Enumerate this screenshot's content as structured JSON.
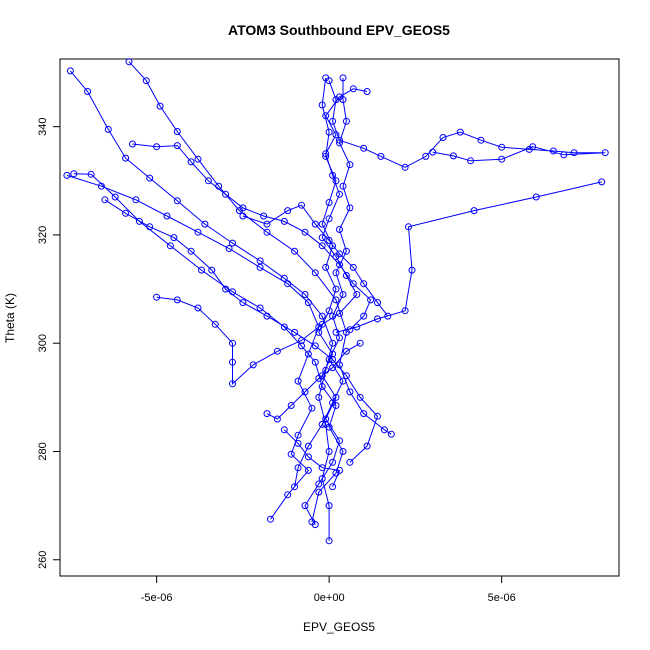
{
  "colors": {
    "series": "#0000ff",
    "axis": "#000000",
    "background": "#ffffff"
  },
  "chart_data": {
    "type": "scatter",
    "title": "ATOM3 Southbound EPV_GEOS5",
    "xlabel": "EPV_GEOS5",
    "ylabel": "Theta (K)",
    "xlim": [
      -7.8e-06,
      8.4e-06
    ],
    "ylim": [
      257,
      352.5
    ],
    "xticks": [
      -5e-06,
      0,
      5e-06
    ],
    "xtick_labels": [
      "-5e-06",
      "0e+00",
      "5e-06"
    ],
    "yticks": [
      260,
      280,
      300,
      320,
      340
    ],
    "ytick_labels": [
      "260",
      "280",
      "300",
      "320",
      "340"
    ],
    "grid": false,
    "legend": "none",
    "marker": "open-circle",
    "connect_points": true,
    "series": [
      {
        "points": [
          [
            -7.5e-06,
            350.3
          ],
          [
            -7e-06,
            346.5
          ],
          [
            -6.4e-06,
            339.5
          ],
          [
            -5.9e-06,
            334.2
          ],
          [
            -5.2e-06,
            330.5
          ],
          [
            -4.4e-06,
            326.3
          ],
          [
            -3.6e-06,
            322.0
          ],
          [
            -2.8e-06,
            318.5
          ],
          [
            -2e-06,
            315.2
          ],
          [
            -1.3e-06,
            312.0
          ],
          [
            -7e-07,
            309.0
          ],
          [
            -2e-07,
            305.0
          ],
          [
            1e-07,
            300.0
          ],
          [
            -1e-07,
            295.0
          ],
          [
            -3e-07,
            290.0
          ],
          [
            -1e-07,
            285.0
          ],
          [
            0.0,
            280.0
          ],
          [
            -2e-07,
            275.0
          ],
          [
            0.0,
            270.0
          ],
          [
            0.0,
            263.5
          ]
        ]
      },
      {
        "points": [
          [
            -5.8e-06,
            352.0
          ],
          [
            -5.3e-06,
            348.5
          ],
          [
            -4.9e-06,
            343.8
          ],
          [
            -4.4e-06,
            339.1
          ],
          [
            -3.8e-06,
            334.0
          ],
          [
            -3.2e-06,
            329.0
          ],
          [
            -2.6e-06,
            324.5
          ],
          [
            -1.8e-06,
            320.5
          ],
          [
            -1e-06,
            317.0
          ],
          [
            -4e-07,
            313.0
          ],
          [
            2e-07,
            308.0
          ],
          [
            5e-07,
            302.0
          ],
          [
            3e-07,
            296.0
          ],
          [
            6e-07,
            291.0
          ],
          [
            1e-06,
            287.0
          ],
          [
            1.6e-06,
            284.0
          ],
          [
            1.8e-06,
            283.2
          ]
        ]
      },
      {
        "points": [
          [
            0.0,
            348.5
          ],
          [
            2e-07,
            345.0
          ],
          [
            1e-07,
            341.0
          ],
          [
            3e-07,
            337.5
          ],
          [
            1e-06,
            336.0
          ],
          [
            1.5e-06,
            334.5
          ],
          [
            2.2e-06,
            332.5
          ],
          [
            2.8e-06,
            334.5
          ],
          [
            3.3e-06,
            338.0
          ],
          [
            3.8e-06,
            339.0
          ],
          [
            4.4e-06,
            337.5
          ],
          [
            5e-06,
            336.2
          ],
          [
            5.8e-06,
            335.8
          ],
          [
            6.5e-06,
            335.5
          ],
          [
            7.1e-06,
            335.2
          ],
          [
            8e-06,
            335.2
          ],
          [
            6.8e-06,
            334.8
          ],
          [
            5.9e-06,
            336.3
          ],
          [
            5e-06,
            334.0
          ],
          [
            4.1e-06,
            333.7
          ],
          [
            3.6e-06,
            334.6
          ],
          [
            3e-06,
            335.3
          ]
        ]
      },
      {
        "points": [
          [
            7.9e-06,
            329.8
          ],
          [
            6e-06,
            327.0
          ],
          [
            4.2e-06,
            324.5
          ],
          [
            2.3e-06,
            321.5
          ],
          [
            2.4e-06,
            313.5
          ],
          [
            2.2e-06,
            306.0
          ],
          [
            1.4e-06,
            304.5
          ],
          [
            8e-07,
            303.0
          ],
          [
            2e-07,
            302.0
          ]
        ]
      },
      {
        "points": [
          [
            -7.6e-06,
            331.0
          ],
          [
            -6.6e-06,
            329.0
          ],
          [
            -5.6e-06,
            326.5
          ],
          [
            -4.7e-06,
            323.5
          ],
          [
            -3.8e-06,
            320.5
          ],
          [
            -2.9e-06,
            317.5
          ],
          [
            -2e-06,
            314.0
          ],
          [
            -1.2e-06,
            311.0
          ],
          [
            -6e-07,
            307.5
          ],
          [
            -3e-07,
            303.0
          ],
          [
            -6e-07,
            298.0
          ],
          [
            -9e-07,
            293.0
          ],
          [
            -5e-07,
            288.0
          ],
          [
            -9e-07,
            283.0
          ],
          [
            -1.1e-06,
            279.5
          ],
          [
            -6e-07,
            276.5
          ],
          [
            -1.2e-06,
            272.0
          ],
          [
            -1.7e-06,
            267.5
          ]
        ]
      },
      {
        "points": [
          [
            -7.4e-06,
            331.3
          ],
          [
            -6.9e-06,
            331.2
          ],
          [
            -6.2e-06,
            327.0
          ],
          [
            -5.5e-06,
            322.5
          ],
          [
            -4.6e-06,
            318.0
          ],
          [
            -3.7e-06,
            313.5
          ],
          [
            -2.8e-06,
            309.5
          ],
          [
            -2e-06,
            306.5
          ],
          [
            -1.3e-06,
            303.0
          ],
          [
            -8e-07,
            299.5
          ],
          [
            -4e-07,
            296.5
          ],
          [
            -2e-07,
            292.0
          ],
          [
            2e-07,
            288.5
          ],
          [
            0.0,
            284.5
          ],
          [
            4e-07,
            280.0
          ],
          [
            2e-07,
            276.0
          ],
          [
            -3e-07,
            272.5
          ],
          [
            -5e-07,
            267.0
          ]
        ]
      },
      {
        "points": [
          [
            -6.5e-06,
            326.5
          ],
          [
            -5.9e-06,
            324.0
          ],
          [
            -5.2e-06,
            321.5
          ],
          [
            -4.5e-06,
            319.5
          ],
          [
            -4e-06,
            317.0
          ],
          [
            -3.4e-06,
            313.5
          ],
          [
            -3e-06,
            310.0
          ],
          [
            -2.5e-06,
            307.5
          ],
          [
            -1.8e-06,
            305.0
          ],
          [
            -1e-06,
            302.0
          ],
          [
            -4e-07,
            299.5
          ],
          [
            1e-07,
            297.0
          ],
          [
            5e-07,
            294.0
          ],
          [
            9e-07,
            290.0
          ],
          [
            1.4e-06,
            286.5
          ],
          [
            1.1e-06,
            281.0
          ],
          [
            6e-07,
            278.0
          ]
        ]
      },
      {
        "points": [
          [
            -5e-06,
            308.5
          ],
          [
            -4.4e-06,
            308.0
          ],
          [
            -3.8e-06,
            306.5
          ],
          [
            -3.3e-06,
            303.5
          ],
          [
            -2.8e-06,
            300.0
          ],
          [
            -2.8e-06,
            296.5
          ],
          [
            -2.8e-06,
            292.5
          ],
          [
            -2.2e-06,
            296.0
          ],
          [
            -1.5e-06,
            298.5
          ],
          [
            -8e-07,
            300.5
          ],
          [
            -2e-07,
            303.5
          ],
          [
            3e-07,
            305.5
          ],
          [
            8e-07,
            309.0
          ],
          [
            5e-07,
            312.5
          ],
          [
            2e-07,
            316.0
          ],
          [
            -2e-07,
            319.5
          ],
          [
            0.0,
            323.0
          ],
          [
            3e-07,
            327.5
          ],
          [
            1e-07,
            331.0
          ],
          [
            -1e-07,
            335.0
          ],
          [
            2e-07,
            338.5
          ],
          [
            -1e-07,
            342.0
          ],
          [
            3e-07,
            345.5
          ],
          [
            7e-07,
            347.0
          ],
          [
            1.1e-06,
            346.5
          ]
        ]
      },
      {
        "points": [
          [
            -5.7e-06,
            336.8
          ],
          [
            -5e-06,
            336.3
          ],
          [
            -4.4e-06,
            336.5
          ],
          [
            -4e-06,
            333.5
          ],
          [
            -3.5e-06,
            330.0
          ],
          [
            -3e-06,
            327.5
          ],
          [
            -2.5e-06,
            325.0
          ],
          [
            -1.9e-06,
            323.5
          ],
          [
            -1.3e-06,
            322.5
          ],
          [
            -7e-07,
            320.5
          ],
          [
            -2e-07,
            318.0
          ],
          [
            3e-07,
            314.5
          ],
          [
            7e-07,
            311.0
          ],
          [
            1.2e-06,
            308.0
          ],
          [
            1e-06,
            305.0
          ],
          [
            6e-07,
            302.5
          ]
        ]
      },
      {
        "points": [
          [
            -1e-07,
            349.0
          ],
          [
            -2e-07,
            344.0
          ],
          [
            0.0,
            339.0
          ],
          [
            -1e-07,
            334.5
          ],
          [
            2e-07,
            330.0
          ],
          [
            0.0,
            326.0
          ],
          [
            -2e-07,
            322.0
          ],
          [
            1e-07,
            318.0
          ],
          [
            -1e-07,
            314.0
          ],
          [
            2e-07,
            310.0
          ],
          [
            0.0,
            306.0
          ],
          [
            -3e-07,
            302.0
          ],
          [
            1e-07,
            298.0
          ],
          [
            -2e-07,
            294.0
          ],
          [
            2e-07,
            290.0
          ],
          [
            -1e-07,
            286.0
          ],
          [
            3e-07,
            282.0
          ],
          [
            1e-07,
            278.0
          ],
          [
            -3e-07,
            274.0
          ],
          [
            -7e-07,
            270.0
          ],
          [
            -4e-07,
            266.5
          ]
        ]
      },
      {
        "points": [
          [
            4e-07,
            349.0
          ],
          [
            4e-07,
            345.0
          ],
          [
            5e-07,
            341.0
          ],
          [
            3e-07,
            337.0
          ],
          [
            6e-07,
            333.0
          ],
          [
            4e-07,
            329.0
          ],
          [
            6e-07,
            325.0
          ],
          [
            3e-07,
            321.0
          ],
          [
            5e-07,
            317.0
          ],
          [
            2e-07,
            313.0
          ],
          [
            4e-07,
            309.0
          ],
          [
            1e-07,
            305.0
          ],
          [
            3e-07,
            301.0
          ],
          [
            0.0,
            297.0
          ],
          [
            4e-07,
            293.0
          ],
          [
            1e-07,
            289.0
          ],
          [
            -2e-07,
            285.0
          ],
          [
            -6e-07,
            281.0
          ],
          [
            -9e-07,
            277.0
          ],
          [
            -1e-06,
            273.5
          ]
        ]
      },
      {
        "points": [
          [
            -2.5e-06,
            323.5
          ],
          [
            -1.8e-06,
            322.0
          ],
          [
            -1.2e-06,
            324.5
          ],
          [
            -8e-07,
            325.5
          ],
          [
            -4e-07,
            322.0
          ],
          [
            0.0,
            319.0
          ],
          [
            3e-07,
            316.5
          ],
          [
            7e-07,
            314.0
          ],
          [
            1e-06,
            311.0
          ],
          [
            1.4e-06,
            307.5
          ],
          [
            1.7e-06,
            305.0
          ]
        ]
      },
      {
        "points": [
          [
            -1.8e-06,
            287.0
          ],
          [
            -1.5e-06,
            286.0
          ],
          [
            -1.1e-06,
            288.5
          ],
          [
            -7e-07,
            291.0
          ],
          [
            -3e-07,
            293.5
          ],
          [
            1e-07,
            295.5
          ],
          [
            5e-07,
            298.5
          ],
          [
            9e-07,
            300.0
          ]
        ]
      },
      {
        "points": [
          [
            -1.3e-06,
            284.0
          ],
          [
            -9e-07,
            281.5
          ],
          [
            -6e-07,
            279.0
          ],
          [
            -2e-07,
            277.0
          ],
          [
            3e-07,
            276.5
          ],
          [
            1e-07,
            273.5
          ]
        ]
      }
    ]
  }
}
